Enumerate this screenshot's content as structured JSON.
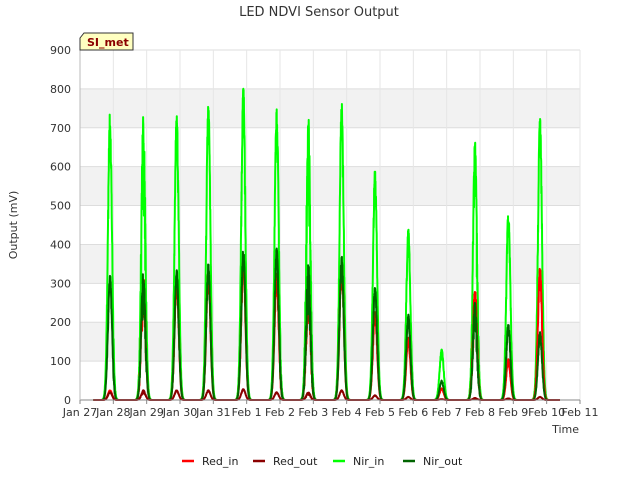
{
  "chart_data": {
    "type": "line",
    "title": "LED NDVI Sensor Output",
    "xlabel": "Time",
    "ylabel": "Output (mV)",
    "ylim": [
      0,
      900
    ],
    "yticks": [
      0,
      100,
      200,
      300,
      400,
      500,
      600,
      700,
      800,
      900
    ],
    "xlim": [
      0,
      15
    ],
    "xticks": [
      {
        "x": 0,
        "label": "Jan 27"
      },
      {
        "x": 1,
        "label": "Jan 28"
      },
      {
        "x": 2,
        "label": "Jan 29"
      },
      {
        "x": 3,
        "label": "Jan 30"
      },
      {
        "x": 4,
        "label": "Jan 31"
      },
      {
        "x": 5,
        "label": "Feb 1"
      },
      {
        "x": 6,
        "label": "Feb 2"
      },
      {
        "x": 7,
        "label": "Feb 3"
      },
      {
        "x": 8,
        "label": "Feb 4"
      },
      {
        "x": 9,
        "label": "Feb 5"
      },
      {
        "x": 10,
        "label": "Feb 6"
      },
      {
        "x": 11,
        "label": "Feb 7"
      },
      {
        "x": 12,
        "label": "Feb 8"
      },
      {
        "x": 13,
        "label": "Feb 9"
      },
      {
        "x": 14,
        "label": "Feb 10"
      },
      {
        "x": 15,
        "label": "Feb 11"
      }
    ],
    "grid": true,
    "legend_position": "bottom",
    "badge": "SI_met",
    "data_range": [
      0.4,
      14.4
    ],
    "series": [
      {
        "name": "Red_in",
        "color": "#ff0000",
        "peaks": [
          [
            0.9,
            25
          ],
          [
            1.9,
            320
          ],
          [
            2.9,
            315
          ],
          [
            3.85,
            335
          ],
          [
            4.9,
            360
          ],
          [
            5.9,
            325
          ],
          [
            6.85,
            310
          ],
          [
            7.85,
            355
          ],
          [
            8.85,
            230
          ],
          [
            9.85,
            160
          ],
          [
            10.85,
            30
          ],
          [
            11.85,
            290
          ],
          [
            12.85,
            105
          ],
          [
            13.8,
            340
          ]
        ]
      },
      {
        "name": "Red_out",
        "color": "#8b0000",
        "peaks": [
          [
            0.9,
            20
          ],
          [
            1.9,
            25
          ],
          [
            2.9,
            25
          ],
          [
            3.85,
            25
          ],
          [
            4.9,
            28
          ],
          [
            5.9,
            20
          ],
          [
            6.85,
            20
          ],
          [
            7.85,
            25
          ],
          [
            8.85,
            12
          ],
          [
            9.85,
            8
          ],
          [
            10.85,
            2
          ],
          [
            11.85,
            5
          ],
          [
            12.85,
            4
          ],
          [
            13.8,
            8
          ]
        ]
      },
      {
        "name": "Nir_in",
        "color": "#00ff00",
        "peaks": [
          [
            0.9,
            740
          ],
          [
            1.9,
            740
          ],
          [
            2.9,
            740
          ],
          [
            3.85,
            760
          ],
          [
            4.9,
            805
          ],
          [
            5.9,
            755
          ],
          [
            6.85,
            730
          ],
          [
            7.85,
            765
          ],
          [
            8.85,
            595
          ],
          [
            9.85,
            440
          ],
          [
            10.85,
            130
          ],
          [
            11.85,
            670
          ],
          [
            12.85,
            485
          ],
          [
            13.8,
            725
          ]
        ]
      },
      {
        "name": "Nir_out",
        "color": "#006400",
        "peaks": [
          [
            0.9,
            320
          ],
          [
            1.9,
            330
          ],
          [
            2.9,
            335
          ],
          [
            3.85,
            350
          ],
          [
            4.9,
            390
          ],
          [
            5.9,
            390
          ],
          [
            6.85,
            360
          ],
          [
            7.85,
            370
          ],
          [
            8.85,
            290
          ],
          [
            9.85,
            220
          ],
          [
            10.85,
            50
          ],
          [
            11.85,
            250
          ],
          [
            12.85,
            195
          ],
          [
            13.8,
            175
          ]
        ]
      }
    ]
  }
}
